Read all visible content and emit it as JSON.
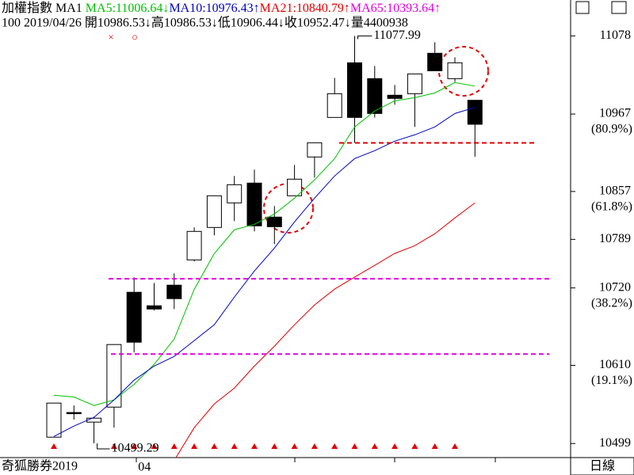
{
  "chart_data": {
    "type": "candlestick",
    "title": "加權指數 MA1",
    "info": "100 2019/04/26 開10986.53↓高10986.53↓低10906.44↓收10952.47↓量4400938",
    "categories": [
      null,
      null,
      null,
      null,
      "04",
      null,
      null,
      null,
      null,
      null,
      null,
      null,
      null,
      null,
      null,
      null,
      null,
      null,
      null,
      null,
      null,
      null
    ],
    "open": [
      10508,
      10543,
      10529.4,
      10550.7,
      10713.8,
      10694.6,
      10723.9,
      10759.8,
      10805.9,
      10840.8,
      10868.9,
      10820.6,
      10850.9,
      10906,
      10962.2,
      11039.8,
      11017.3,
      10993.7,
      10995.9,
      11053.3,
      11017.3,
      10986.53
    ],
    "high": [
      10556.4,
      10553,
      10537,
      10640,
      10735,
      10727,
      10740.7,
      10805.9,
      10851,
      10879,
      10888,
      10836.3,
      10894.7,
      10926.2,
      11018.4,
      11077.99,
      11035.3,
      11008.3,
      11024,
      11069,
      11047.6,
      10986.53
    ],
    "low": [
      10508,
      10533,
      10499.29,
      10521.5,
      10628.3,
      10688,
      10690,
      10757.6,
      10794.7,
      10815,
      10800.3,
      10782.3,
      10850.9,
      10876.8,
      10962,
      10926.2,
      10962,
      10980.2,
      10948.7,
      11028.5,
      11012.8,
      10906.44
    ],
    "close": [
      10556.4,
      10543,
      10535,
      10639.6,
      10642.9,
      10690,
      10704.8,
      10800.3,
      10850.9,
      10866.6,
      10808.2,
      10807,
      10874.5,
      10926.2,
      10995.9,
      10962.2,
      10967.8,
      10989.2,
      11024,
      11028.5,
      11039.8,
      10952.47
    ],
    "series": [
      {
        "name": "MA5:11006.64↓",
        "color": "#00c000",
        "values": [
          10567.6,
          10565,
          10553,
          10561,
          10583,
          10611.4,
          10647.4,
          10718,
          10768.8,
          10802.6,
          10810.4,
          10825,
          10847.5,
          10873.4,
          10903.7,
          10948.7,
          10971.2,
          10985.8,
          10990.3,
          10997,
          11011.7,
          11006.64
        ]
      },
      {
        "name": "MA10:10976.43↑",
        "color": "#0000c0",
        "values": [
          10509,
          10523.8,
          10536.1,
          10561,
          10589,
          10609,
          10622.7,
          10645.2,
          10667.7,
          10707,
          10744,
          10776.7,
          10813.8,
          10847.5,
          10879,
          10903.7,
          10915,
          10928.5,
          10937.5,
          10948.7,
          10967.8,
          10976.43
        ]
      },
      {
        "name": "MA21:10840.79↑",
        "color": "#e00000",
        "values": [
          null,
          null,
          null,
          null,
          null,
          null,
          10475,
          10521.5,
          10555.2,
          10577.7,
          10609,
          10637.3,
          10667.7,
          10695.8,
          10718.3,
          10735.3,
          10752,
          10769,
          10780,
          10797,
          10819.4,
          10840.79
        ]
      },
      {
        "name": "MA65:10393.64↑",
        "color": "#e000e0",
        "values": [
          null,
          null,
          null,
          null,
          null,
          null,
          null,
          null,
          null,
          null,
          null,
          null,
          null,
          null,
          null,
          null,
          null,
          null,
          null,
          null,
          null,
          null
        ]
      }
    ],
    "ylim": [
      10479,
      11129
    ],
    "yticks": [
      11078,
      10967,
      10857,
      10789,
      10720,
      10610,
      10499
    ],
    "retracement_labels": [
      {
        "value": 10967,
        "label": "(80.9%)"
      },
      {
        "value": 10857,
        "label": "(61.8%)"
      },
      {
        "value": 10720,
        "label": "(38.2%)"
      },
      {
        "value": 10610,
        "label": "(19.1%)"
      }
    ],
    "hlines": [
      {
        "value": 10926,
        "color": "#e00000"
      },
      {
        "value": 10733,
        "color": "#e000e0"
      },
      {
        "value": 10626,
        "color": "#e000e0"
      }
    ],
    "high_label": "11077.99",
    "low_label": "10499.29",
    "signal_markers": [
      "×",
      "○"
    ],
    "buy_signals": [
      true,
      false,
      false,
      true,
      true,
      true,
      true,
      true,
      true,
      true,
      true,
      true,
      true,
      true,
      true,
      true,
      true,
      true,
      true,
      true,
      true,
      false
    ],
    "footer": "奇狐勝券2019",
    "period": "日線"
  }
}
